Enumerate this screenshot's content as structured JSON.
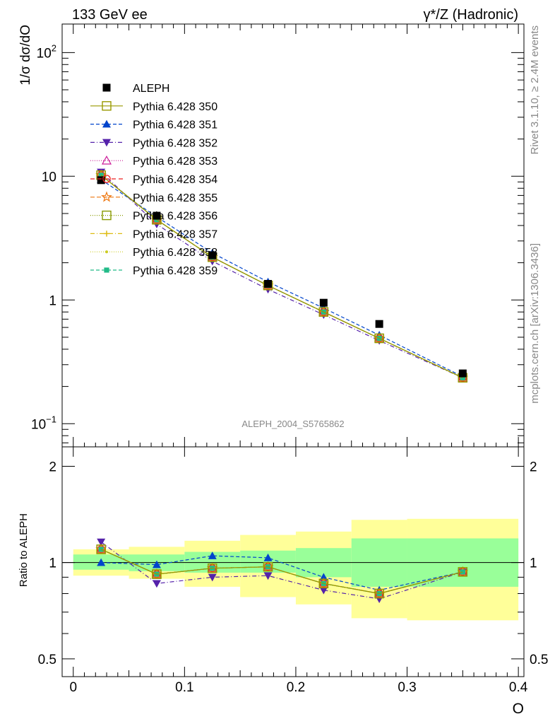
{
  "header": {
    "left": "133 GeV ee",
    "right": "γ*/Z (Hadronic)"
  },
  "side": {
    "rivet": "Rivet 3.1.10, ≥ 2.4M events",
    "mcplots": "mcplots.cern.ch [arXiv:1306.3436]"
  },
  "analysis_id": "ALEPH_2004_S5765862",
  "main_ylabel": "1/σ  dσ/dO",
  "ratio_ylabel": "Ratio to ALEPH",
  "xlabel": "O",
  "colors": {
    "data": "#000000",
    "band_inner": "#99ff99",
    "band_outer": "#ffff99"
  },
  "chart_data": {
    "type": "line",
    "x_ticks": [
      "0",
      "0.1",
      "0.2",
      "0.3",
      "0.4"
    ],
    "main_y_ticks": [
      {
        "value": 0.1,
        "base": "10",
        "exp": "−1"
      },
      {
        "value": 1,
        "label": "1"
      },
      {
        "value": 10,
        "label": "10"
      },
      {
        "value": 100,
        "base": "10",
        "exp": "2"
      }
    ],
    "ratio_y_ticks": [
      {
        "value": 0.5,
        "label": "0.5"
      },
      {
        "value": 1,
        "label": "1"
      },
      {
        "value": 2,
        "label": "2"
      }
    ],
    "xlim": [
      -0.01,
      0.405
    ],
    "ylim_main": [
      0.065,
      170
    ],
    "ylim_ratio": [
      0.44,
      2.3
    ],
    "y_scale": "log",
    "bins": [
      [
        0,
        0.05
      ],
      [
        0.05,
        0.1
      ],
      [
        0.1,
        0.15
      ],
      [
        0.15,
        0.2
      ],
      [
        0.2,
        0.25
      ],
      [
        0.25,
        0.3
      ],
      [
        0.3,
        0.4
      ]
    ],
    "x": [
      0.025,
      0.075,
      0.125,
      0.175,
      0.225,
      0.275,
      0.35
    ],
    "data": {
      "name": "ALEPH",
      "values": [
        9.3,
        4.8,
        2.3,
        1.35,
        0.95,
        0.64,
        0.255
      ],
      "band_inner_ratio": [
        [
          0.95,
          1.06
        ],
        [
          0.94,
          1.06
        ],
        [
          0.93,
          1.08
        ],
        [
          0.93,
          1.09
        ],
        [
          0.9,
          1.11
        ],
        [
          0.84,
          1.19
        ],
        [
          0.84,
          1.19
        ]
      ],
      "band_outer_ratio": [
        [
          0.91,
          1.1
        ],
        [
          0.89,
          1.12
        ],
        [
          0.84,
          1.17
        ],
        [
          0.78,
          1.22
        ],
        [
          0.74,
          1.25
        ],
        [
          0.67,
          1.36
        ],
        [
          0.66,
          1.37
        ]
      ]
    },
    "series": [
      {
        "name": "Pythia 6.428 350",
        "color": "#999900",
        "dash": "",
        "marker": "square-open",
        "values": [
          10.2,
          4.45,
          2.22,
          1.31,
          0.8,
          0.49,
          0.235
        ],
        "ratio": [
          1.1,
          0.92,
          0.96,
          0.97,
          0.86,
          0.8,
          0.935
        ]
      },
      {
        "name": "Pythia 6.428 351",
        "color": "#0044cc",
        "dash": "5,3",
        "marker": "triangle-up",
        "values": [
          9.4,
          4.7,
          2.4,
          1.4,
          0.86,
          0.52,
          0.24
        ],
        "ratio": [
          1.0,
          0.985,
          1.05,
          1.035,
          0.9,
          0.82,
          0.935
        ]
      },
      {
        "name": "Pythia 6.428 352",
        "color": "#5522aa",
        "dash": "6,3,1,3",
        "marker": "triangle-down",
        "values": [
          10.8,
          4.1,
          2.06,
          1.22,
          0.76,
          0.47,
          0.235
        ],
        "ratio": [
          1.16,
          0.86,
          0.9,
          0.91,
          0.82,
          0.77,
          0.935
        ]
      },
      {
        "name": "Pythia 6.428 353",
        "color": "#cc1a99",
        "dash": "1,2",
        "marker": "triangle-open",
        "values": [
          10.2,
          4.45,
          2.22,
          1.31,
          0.8,
          0.49,
          0.235
        ],
        "ratio": [
          1.1,
          0.92,
          0.96,
          0.97,
          0.86,
          0.8,
          0.935
        ]
      },
      {
        "name": "Pythia 6.428 354",
        "color": "#ee2222",
        "dash": "6,4",
        "marker": "circle-open",
        "values": [
          10.2,
          4.45,
          2.22,
          1.31,
          0.8,
          0.49,
          0.235
        ],
        "ratio": [
          1.1,
          0.92,
          0.96,
          0.97,
          0.86,
          0.8,
          0.935
        ]
      },
      {
        "name": "Pythia 6.428 355",
        "color": "#ee7711",
        "dash": "6,3",
        "marker": "star-open",
        "values": [
          10.2,
          4.45,
          2.22,
          1.31,
          0.8,
          0.49,
          0.235
        ],
        "ratio": [
          1.1,
          0.92,
          0.96,
          0.97,
          0.86,
          0.8,
          0.935
        ]
      },
      {
        "name": "Pythia 6.428 356",
        "color": "#889900",
        "dash": "1,2",
        "marker": "square-open",
        "values": [
          10.2,
          4.45,
          2.22,
          1.31,
          0.8,
          0.49,
          0.235
        ],
        "ratio": [
          1.1,
          0.92,
          0.96,
          0.97,
          0.86,
          0.8,
          0.935
        ]
      },
      {
        "name": "Pythia 6.428 357",
        "color": "#ddbb11",
        "dash": "6,3,1,3",
        "marker": "cross",
        "values": [
          10.2,
          4.45,
          2.22,
          1.31,
          0.8,
          0.49,
          0.235
        ],
        "ratio": [
          1.1,
          0.92,
          0.96,
          0.97,
          0.86,
          0.8,
          0.935
        ]
      },
      {
        "name": "Pythia 6.428 358",
        "color": "#cccc22",
        "dash": "1,2",
        "marker": "dot",
        "values": [
          10.2,
          4.45,
          2.22,
          1.31,
          0.8,
          0.49,
          0.235
        ],
        "ratio": [
          1.1,
          0.92,
          0.96,
          0.97,
          0.86,
          0.8,
          0.935
        ]
      },
      {
        "name": "Pythia 6.428 359",
        "color": "#22bb88",
        "dash": "5,3",
        "marker": "square-small",
        "values": [
          10.2,
          4.45,
          2.22,
          1.31,
          0.8,
          0.49,
          0.235
        ],
        "ratio": [
          1.1,
          0.92,
          0.96,
          0.97,
          0.86,
          0.8,
          0.935
        ]
      }
    ]
  }
}
